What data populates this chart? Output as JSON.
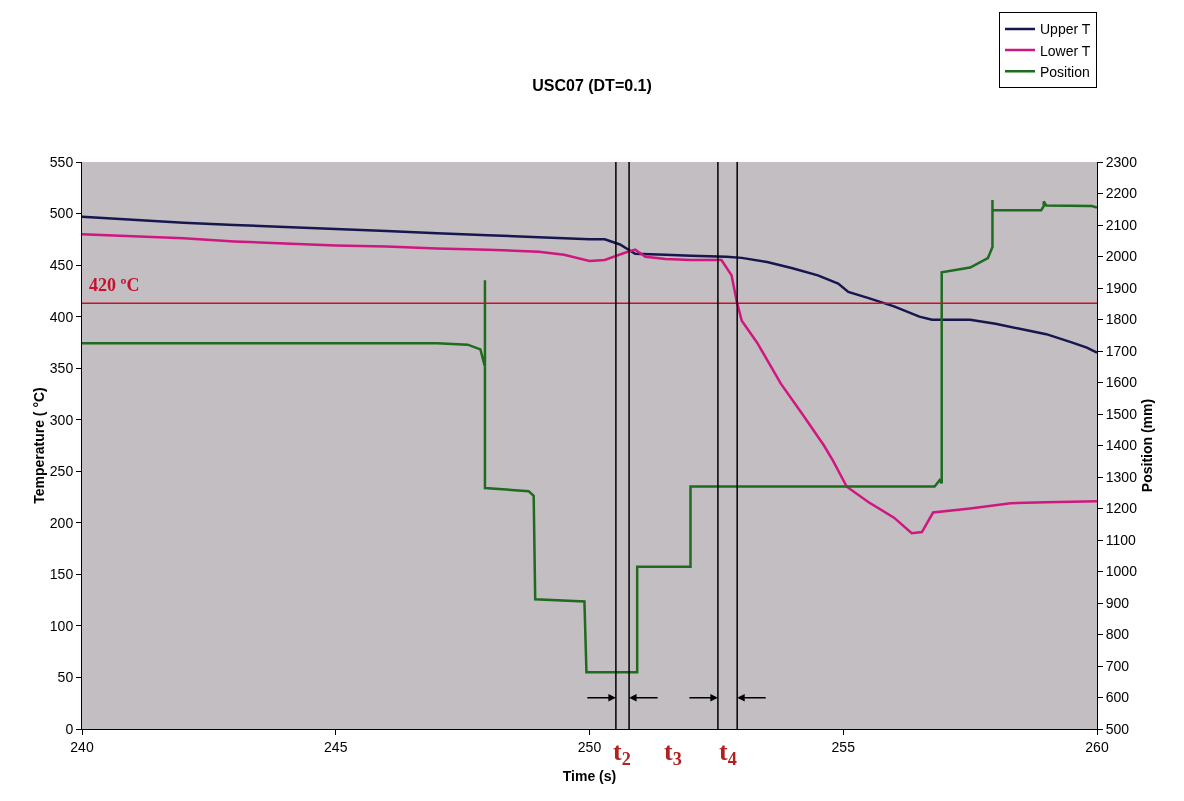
{
  "chart_data": {
    "type": "line",
    "title": "USC07 (DT=0.1)",
    "xlabel": "Time (s)",
    "ylabel": "Temperature ( °C)",
    "y2label": "Position (mm)",
    "xlim": [
      240,
      260
    ],
    "xticks": [
      240,
      245,
      250,
      255,
      260
    ],
    "ylim": [
      0,
      550
    ],
    "yticks": [
      0,
      50,
      100,
      150,
      200,
      250,
      300,
      350,
      400,
      450,
      500,
      550
    ],
    "y2lim": [
      500,
      2300
    ],
    "y2ticks": [
      500,
      600,
      700,
      800,
      900,
      1000,
      1100,
      1200,
      1300,
      1400,
      1500,
      1600,
      1700,
      1800,
      1900,
      2000,
      2100,
      2200,
      2300
    ],
    "grid": false,
    "legend": "top right",
    "marker": "none",
    "line_style": "solid",
    "series": [
      {
        "name": "Upper T",
        "color": "#17174f",
        "x": [
          240,
          241,
          242,
          243,
          244,
          245,
          246,
          247,
          248,
          249,
          250,
          250.3,
          250.6,
          250.9,
          251.5,
          252,
          252.7,
          253,
          253.5,
          254,
          254.5,
          254.9,
          255.1,
          255.5,
          256,
          256.5,
          256.75,
          257.5,
          258,
          258.5,
          259,
          259.5,
          259.8,
          260
        ],
        "values": [
          497,
          494,
          491,
          489,
          487,
          485,
          483,
          481,
          479,
          477,
          475,
          475,
          470,
          461,
          460,
          459,
          458,
          457,
          453,
          447,
          440,
          432,
          424,
          418,
          410,
          400,
          397,
          397,
          393,
          388,
          383,
          375,
          370,
          365
        ]
      },
      {
        "name": "Lower T",
        "color": "#d0177f",
        "x": [
          240,
          241,
          242,
          243,
          244,
          245,
          246,
          247,
          248,
          249,
          249.5,
          250,
          250.3,
          250.7,
          250.9,
          251.1,
          251.5,
          252,
          252.6,
          252.8,
          252.9,
          253,
          253.3,
          253.77,
          254.2,
          254.62,
          254.8,
          255.07,
          255.5,
          256,
          256.35,
          256.55,
          256.77,
          257.5,
          258.3,
          259,
          260
        ],
        "values": [
          480,
          478,
          476,
          473,
          471,
          469,
          468,
          466,
          465,
          463,
          460,
          454,
          455,
          462,
          465,
          458,
          456,
          455,
          455,
          440,
          415,
          396,
          375,
          335,
          305,
          275,
          260,
          235,
          220,
          205,
          190,
          191,
          210,
          214,
          219,
          220,
          221
        ]
      },
      {
        "name": "Position",
        "color": "#1f6b1f",
        "axis": "y2",
        "x": [
          240,
          247,
          247.6,
          247.85,
          247.94,
          247.94,
          247.94,
          248.8,
          248.9,
          248.93,
          249.9,
          249.94,
          250.94,
          250.94,
          251.99,
          251.99,
          256.8,
          256.9,
          256.94,
          256.94,
          257.5,
          257.85,
          257.94,
          257.94,
          257.94,
          258.9,
          258.95,
          258.95,
          259.0,
          259.9,
          260
        ],
        "values": [
          1725,
          1725,
          1720,
          1705,
          1650,
          1925,
          1265,
          1255,
          1240,
          912,
          905,
          680,
          680,
          1015,
          1015,
          1270,
          1270,
          1290,
          1280,
          1950,
          1965,
          1995,
          2030,
          2179,
          2147,
          2147,
          2160,
          2175,
          2162,
          2160,
          2155
        ]
      }
    ],
    "ref_lines": [
      {
        "axis": "y",
        "value": 413,
        "label": "420 ºC",
        "color": "#c8102e"
      },
      {
        "axis": "x",
        "value": 250.52,
        "label": null,
        "color": "#000000"
      },
      {
        "axis": "x",
        "value": 250.78,
        "label": null,
        "color": "#000000"
      },
      {
        "axis": "x",
        "value": 252.53,
        "label": null,
        "color": "#000000"
      },
      {
        "axis": "x",
        "value": 252.91,
        "label": null,
        "color": "#000000"
      }
    ],
    "annotations": [
      "t$_{2}$",
      "t$_{3}$",
      "t$_{4}$"
    ]
  }
}
